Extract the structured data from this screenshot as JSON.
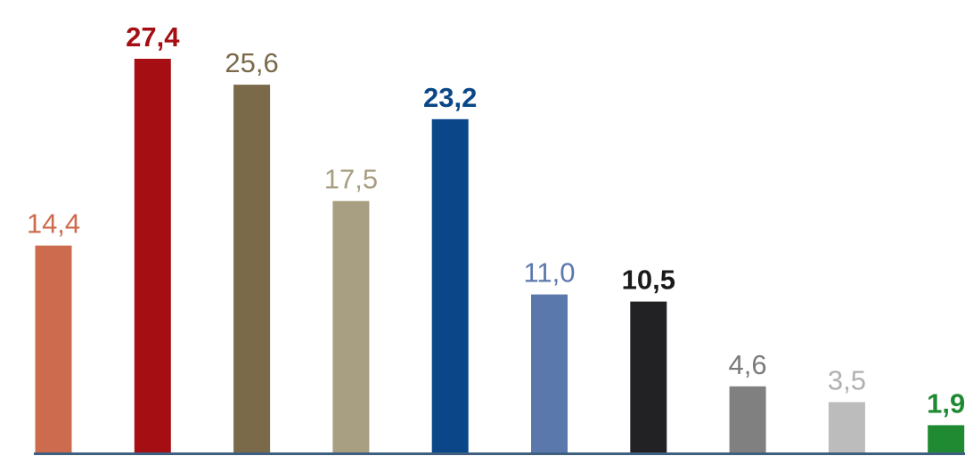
{
  "chart_data": {
    "type": "bar",
    "ylim": [
      0,
      28
    ],
    "grid": false,
    "bars": [
      {
        "value": 14.4,
        "label": "14,4",
        "color": "#cd6b4e",
        "label_color": "#cd6b4e",
        "bold": false
      },
      {
        "value": 27.4,
        "label": "27,4",
        "color": "#a50f14",
        "label_color": "#a50f14",
        "bold": true
      },
      {
        "value": 25.6,
        "label": "25,6",
        "color": "#7a6a4a",
        "label_color": "#7a6a4a",
        "bold": false
      },
      {
        "value": 17.5,
        "label": "17,5",
        "color": "#a89e82",
        "label_color": "#a89e82",
        "bold": false
      },
      {
        "value": 23.2,
        "label": "23,2",
        "color": "#0b4788",
        "label_color": "#0b4788",
        "bold": true
      },
      {
        "value": 11.0,
        "label": "11,0",
        "color": "#5b78ad",
        "label_color": "#5b78ad",
        "bold": false
      },
      {
        "value": 10.5,
        "label": "10,5",
        "color": "#222124",
        "label_color": "#1a1a1a",
        "bold": true
      },
      {
        "value": 4.6,
        "label": "4,6",
        "color": "#808080",
        "label_color": "#7a7a7a",
        "bold": false
      },
      {
        "value": 3.5,
        "label": "3,5",
        "color": "#bcbcbc",
        "label_color": "#b0b0b0",
        "bold": false
      },
      {
        "value": 1.9,
        "label": "1,9",
        "color": "#1f8a32",
        "label_color": "#1f8a32",
        "bold": true
      }
    ],
    "axis_color": "#3f5f80"
  }
}
